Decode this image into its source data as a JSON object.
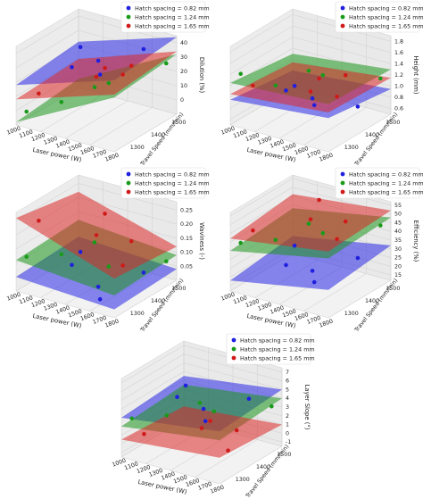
{
  "legend": {
    "entries": [
      {
        "label": "Hatch spacing  = 0.82 mm",
        "color": "#1f1fe0"
      },
      {
        "label": "Hatch spacing  = 1.24 mm",
        "color": "#1a9a1a"
      },
      {
        "label": "Hatch spacing  = 1.65 mm",
        "color": "#d01a1a"
      }
    ]
  },
  "chart_data": [
    {
      "type": "surface3d",
      "xlabel": "Laser power (W)",
      "ylabel": "Travel Speed (mm/min)",
      "zlabel": "Dilution (%)",
      "xticks": [
        "1000",
        "1100",
        "1200",
        "1300",
        "1400",
        "1500",
        "1600",
        "1700",
        "1800"
      ],
      "yticks": [
        "1300",
        "1400",
        "1500"
      ],
      "zticks": [
        "0",
        "10",
        "20",
        "30",
        "40"
      ],
      "zlim": [
        -10,
        45
      ],
      "series": [
        {
          "name": "Hatch spacing  = 0.82 mm",
          "corners": [
            18,
            40,
            22,
            44
          ],
          "points": [
            [
              1200,
              1400,
              22
            ],
            [
              1500,
              1350,
              38
            ],
            [
              1700,
              1450,
              42
            ],
            [
              1100,
              1500,
              25
            ],
            [
              1600,
              1300,
              35
            ]
          ]
        },
        {
          "name": "Hatch spacing  = 1.24 mm",
          "corners": [
            -8,
            28,
            -4,
            32
          ],
          "points": [
            [
              1000,
              1300,
              -5
            ],
            [
              1300,
              1450,
              6
            ],
            [
              1500,
              1400,
              18
            ],
            [
              1800,
              1500,
              30
            ],
            [
              1200,
              1350,
              2
            ]
          ]
        },
        {
          "name": "Hatch spacing  = 1.65 mm",
          "corners": [
            8,
            30,
            10,
            34
          ],
          "points": [
            [
              1100,
              1300,
              10
            ],
            [
              1400,
              1400,
              20
            ],
            [
              1700,
              1350,
              33
            ],
            [
              1300,
              1500,
              15
            ],
            [
              1600,
              1450,
              28
            ]
          ]
        }
      ]
    },
    {
      "type": "surface3d",
      "xlabel": "Laser power (W)",
      "ylabel": "Travel Speed (mm/min)",
      "zlabel": "Height (mm)",
      "xticks": [
        "1000",
        "1100",
        "1200",
        "1300",
        "1400",
        "1500",
        "1600",
        "1700",
        "1800"
      ],
      "yticks": [
        "1300",
        "1400",
        "1500"
      ],
      "zticks": [
        "0.6",
        "0.8",
        "1.0",
        "1.2",
        "1.4",
        "1.6",
        "1.8"
      ],
      "zlim": [
        0.5,
        1.9
      ],
      "series": [
        {
          "name": "Hatch spacing  = 0.82 mm",
          "corners": [
            0.95,
            1.1,
            0.8,
            0.95
          ],
          "points": [
            [
              1200,
              1400,
              0.9
            ],
            [
              1500,
              1350,
              1.05
            ],
            [
              1700,
              1450,
              0.8
            ],
            [
              1100,
              1500,
              0.7
            ],
            [
              1600,
              1300,
              1.1
            ]
          ]
        },
        {
          "name": "Hatch spacing  = 1.24 mm",
          "corners": [
            1.25,
            1.35,
            1.1,
            1.3
          ],
          "points": [
            [
              1000,
              1300,
              1.3
            ],
            [
              1300,
              1450,
              1.2
            ],
            [
              1500,
              1400,
              1.35
            ],
            [
              1800,
              1500,
              1.25
            ],
            [
              1200,
              1350,
              1.1
            ]
          ]
        },
        {
          "name": "Hatch spacing  = 1.65 mm",
          "corners": [
            1.05,
            1.2,
            0.95,
            1.15
          ],
          "points": [
            [
              1100,
              1300,
              1.15
            ],
            [
              1400,
              1400,
              1.0
            ],
            [
              1700,
              1350,
              1.2
            ],
            [
              1300,
              1500,
              0.95
            ],
            [
              1600,
              1450,
              1.3
            ]
          ]
        }
      ]
    },
    {
      "type": "surface3d",
      "xlabel": "Laser power (W)",
      "ylabel": "Travel Speed (mm/min)",
      "zlabel": "Waviness (-)",
      "xticks": [
        "1000",
        "1100",
        "1200",
        "1300",
        "1400",
        "1500",
        "1600",
        "1700",
        "1800"
      ],
      "yticks": [
        "1300",
        "1400",
        "1500"
      ],
      "zticks": [
        "0.05",
        "0.10",
        "0.15",
        "0.20",
        "0.25"
      ],
      "zlim": [
        0.0,
        0.28
      ],
      "series": [
        {
          "name": "Hatch spacing  = 0.82 mm",
          "corners": [
            0.05,
            0.03,
            0.06,
            0.04
          ],
          "points": [
            [
              1200,
              1400,
              0.05
            ],
            [
              1500,
              1350,
              0.03
            ],
            [
              1700,
              1450,
              0.06
            ],
            [
              1100,
              1500,
              0.04
            ],
            [
              1600,
              1300,
              0.02
            ]
          ]
        },
        {
          "name": "Hatch spacing  = 1.24 mm",
          "corners": [
            0.11,
            0.08,
            0.12,
            0.09
          ],
          "points": [
            [
              1000,
              1300,
              0.1
            ],
            [
              1300,
              1450,
              0.12
            ],
            [
              1500,
              1400,
              0.08
            ],
            [
              1800,
              1500,
              0.09
            ],
            [
              1200,
              1350,
              0.11
            ]
          ]
        },
        {
          "name": "Hatch spacing  = 1.65 mm",
          "corners": [
            0.26,
            0.14,
            0.22,
            0.12
          ],
          "points": [
            [
              1100,
              1300,
              0.24
            ],
            [
              1400,
              1400,
              0.18
            ],
            [
              1700,
              1350,
              0.13
            ],
            [
              1300,
              1500,
              0.2
            ],
            [
              1600,
              1450,
              0.16
            ]
          ]
        }
      ]
    },
    {
      "type": "surface3d",
      "xlabel": "Laser power (W)",
      "ylabel": "Travel Speed (mm/min)",
      "zlabel": "Efficiency (%)",
      "xticks": [
        "1000",
        "1100",
        "1200",
        "1300",
        "1400",
        "1500",
        "1600",
        "1700",
        "1800"
      ],
      "yticks": [
        "1300",
        "1400",
        "1500"
      ],
      "zticks": [
        "15",
        "20",
        "25",
        "30",
        "35",
        "40",
        "45",
        "50",
        "55"
      ],
      "zlim": [
        12,
        57
      ],
      "series": [
        {
          "name": "Hatch spacing  = 0.82 mm",
          "corners": [
            18,
            28,
            22,
            32
          ],
          "points": [
            [
              1200,
              1400,
              20
            ],
            [
              1500,
              1350,
              26
            ],
            [
              1700,
              1450,
              30
            ],
            [
              1100,
              1500,
              22
            ],
            [
              1600,
              1300,
              25
            ]
          ]
        },
        {
          "name": "Hatch spacing  = 1.24 mm",
          "corners": [
            35,
            46,
            38,
            48
          ],
          "points": [
            [
              1000,
              1300,
              36
            ],
            [
              1300,
              1450,
              42
            ],
            [
              1500,
              1400,
              44
            ],
            [
              1800,
              1500,
              47
            ],
            [
              1200,
              1350,
              38
            ]
          ]
        },
        {
          "name": "Hatch spacing  = 1.65 mm",
          "corners": [
            42,
            50,
            46,
            52
          ],
          "points": [
            [
              1100,
              1300,
              45
            ],
            [
              1400,
              1400,
              50
            ],
            [
              1700,
              1350,
              48
            ],
            [
              1300,
              1500,
              52
            ],
            [
              1600,
              1450,
              49
            ]
          ]
        }
      ]
    },
    {
      "type": "surface3d",
      "xlabel": "Laser power (W)",
      "ylabel": "Travel Speed (mm/min)",
      "zlabel": "Layer Slope (°)",
      "xticks": [
        "1000",
        "1100",
        "1200",
        "1300",
        "1400",
        "1500",
        "1600",
        "1700",
        "1800"
      ],
      "yticks": [
        "1300",
        "1400",
        "1500"
      ],
      "zticks": [
        "-1",
        "0",
        "1",
        "2",
        "3",
        "4",
        "5",
        "6",
        "7"
      ],
      "zlim": [
        -1.5,
        7.5
      ],
      "series": [
        {
          "name": "Hatch spacing  = 0.82 mm",
          "corners": [
            3,
            4.5,
            3.5,
            5
          ],
          "points": [
            [
              1200,
              1400,
              4
            ],
            [
              1500,
              1350,
              4.5
            ],
            [
              1700,
              1450,
              5
            ],
            [
              1100,
              1500,
              3.5
            ],
            [
              1600,
              1300,
              4.2
            ]
          ]
        },
        {
          "name": "Hatch spacing  = 1.24 mm",
          "corners": [
            2,
            3.5,
            2.5,
            4
          ],
          "points": [
            [
              1000,
              1300,
              2.2
            ],
            [
              1300,
              1450,
              3
            ],
            [
              1500,
              1400,
              3.5
            ],
            [
              1800,
              1500,
              3.8
            ],
            [
              1200,
              1350,
              2.6
            ]
          ]
        },
        {
          "name": "Hatch spacing  = 1.65 mm",
          "corners": [
            0.5,
            1.5,
            0,
            1
          ],
          "points": [
            [
              1100,
              1300,
              0.8
            ],
            [
              1400,
              1400,
              1.2
            ],
            [
              1700,
              1350,
              0.5
            ],
            [
              1300,
              1500,
              0.2
            ],
            [
              1600,
              1450,
              1.0
            ]
          ]
        }
      ]
    }
  ]
}
